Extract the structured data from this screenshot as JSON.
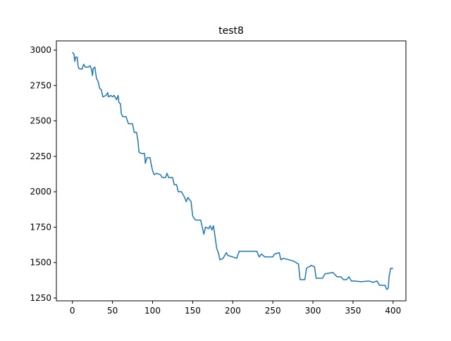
{
  "chart_data": {
    "type": "line",
    "title": "test8",
    "x": [
      0,
      2,
      3,
      4,
      6,
      7,
      8,
      12,
      14,
      16,
      20,
      22,
      24,
      25,
      26,
      28,
      30,
      32,
      34,
      36,
      38,
      42,
      44,
      45,
      48,
      50,
      52,
      55,
      57,
      58,
      60,
      61,
      63,
      67,
      68,
      70,
      75,
      77,
      80,
      82,
      83,
      86,
      90,
      91,
      93,
      97,
      98,
      100,
      102,
      105,
      110,
      112,
      116,
      118,
      120,
      125,
      127,
      130,
      132,
      136,
      138,
      140,
      142,
      144,
      148,
      150,
      152,
      154,
      160,
      164,
      166,
      170,
      172,
      174,
      176,
      178,
      180,
      182,
      184,
      188,
      192,
      194,
      200,
      205,
      208,
      215,
      230,
      233,
      236,
      240,
      250,
      252,
      258,
      260,
      263,
      270,
      276,
      282,
      284,
      290,
      292,
      298,
      302,
      304,
      312,
      315,
      325,
      330,
      335,
      338,
      342,
      345,
      348,
      352,
      360,
      370,
      375,
      380,
      383,
      390,
      392,
      394,
      395,
      397,
      400
    ],
    "series": [
      {
        "color": "#1f77b4",
        "values": [
          2985,
          2970,
          2920,
          2950,
          2950,
          2890,
          2870,
          2865,
          2900,
          2880,
          2880,
          2890,
          2860,
          2820,
          2870,
          2880,
          2800,
          2780,
          2730,
          2720,
          2670,
          2680,
          2700,
          2670,
          2680,
          2670,
          2680,
          2650,
          2680,
          2630,
          2620,
          2550,
          2530,
          2530,
          2510,
          2480,
          2480,
          2420,
          2420,
          2350,
          2280,
          2270,
          2270,
          2200,
          2240,
          2240,
          2200,
          2150,
          2120,
          2130,
          2120,
          2100,
          2100,
          2130,
          2100,
          2100,
          2050,
          2050,
          2000,
          2000,
          1980,
          1960,
          1930,
          1960,
          1930,
          1830,
          1810,
          1800,
          1800,
          1700,
          1750,
          1740,
          1760,
          1730,
          1760,
          1680,
          1600,
          1570,
          1520,
          1530,
          1570,
          1550,
          1540,
          1530,
          1580,
          1580,
          1580,
          1540,
          1560,
          1540,
          1540,
          1560,
          1570,
          1520,
          1530,
          1520,
          1510,
          1490,
          1380,
          1380,
          1460,
          1480,
          1470,
          1390,
          1390,
          1420,
          1430,
          1400,
          1400,
          1380,
          1380,
          1400,
          1370,
          1370,
          1365,
          1370,
          1360,
          1370,
          1340,
          1340,
          1310,
          1320,
          1400,
          1460,
          1460
        ]
      }
    ],
    "xlim": [
      -20,
      416
    ],
    "ylim": [
      1230,
      3065
    ],
    "xticks": [
      0,
      50,
      100,
      150,
      200,
      250,
      300,
      350,
      400
    ],
    "yticks": [
      1250,
      1500,
      1750,
      2000,
      2250,
      2500,
      2750,
      3000
    ]
  }
}
